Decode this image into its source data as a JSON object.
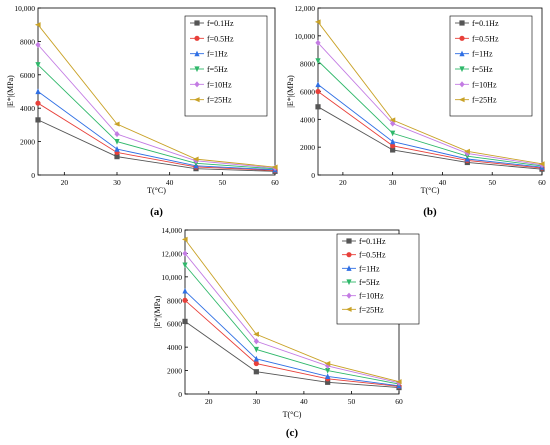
{
  "chart_data": [
    {
      "type": "line",
      "panel_label": "(a)",
      "xlabel": "T(°C)",
      "ylabel": "|E*|(MPa)",
      "x": [
        15,
        30,
        45,
        60
      ],
      "xlim": [
        15,
        60
      ],
      "ylim": [
        0,
        10000
      ],
      "xticks": [
        "20",
        "30",
        "40",
        "50",
        "60"
      ],
      "yticks": [
        "0",
        "2000",
        "4000",
        "6000",
        "8000",
        "10,000"
      ],
      "legend_position": "top-right",
      "series": [
        {
          "name": "f=0.1Hz",
          "color": "#555555",
          "marker": "square",
          "values": [
            3300,
            1100,
            380,
            220
          ]
        },
        {
          "name": "f=0.5Hz",
          "color": "#e8403a",
          "marker": "circle",
          "values": [
            4300,
            1350,
            480,
            270
          ]
        },
        {
          "name": "f=1Hz",
          "color": "#2f6fe4",
          "marker": "triangle-up",
          "values": [
            5000,
            1550,
            550,
            310
          ]
        },
        {
          "name": "f=5Hz",
          "color": "#2fb86a",
          "marker": "triangle-down",
          "values": [
            6600,
            2000,
            700,
            370
          ]
        },
        {
          "name": "f=10Hz",
          "color": "#c37be3",
          "marker": "diamond",
          "values": [
            7800,
            2450,
            850,
            420
          ]
        },
        {
          "name": "f=25Hz",
          "color": "#c9a227",
          "marker": "triangle-left",
          "values": [
            9000,
            3050,
            950,
            470
          ]
        }
      ]
    },
    {
      "type": "line",
      "panel_label": "(b)",
      "xlabel": "T(°C)",
      "ylabel": "|E*|(MPa)",
      "x": [
        15,
        30,
        45,
        60
      ],
      "xlim": [
        15,
        60
      ],
      "ylim": [
        0,
        12000
      ],
      "xticks": [
        "20",
        "30",
        "40",
        "50",
        "60"
      ],
      "yticks": [
        "0",
        "2000",
        "4000",
        "6000",
        "8000",
        "10,000",
        "12,000"
      ],
      "legend_position": "top-right",
      "series": [
        {
          "name": "f=0.1Hz",
          "color": "#555555",
          "marker": "square",
          "values": [
            4900,
            1800,
            900,
            420
          ]
        },
        {
          "name": "f=0.5Hz",
          "color": "#e8403a",
          "marker": "circle",
          "values": [
            6000,
            2100,
            1050,
            500
          ]
        },
        {
          "name": "f=1Hz",
          "color": "#2f6fe4",
          "marker": "triangle-up",
          "values": [
            6500,
            2400,
            1150,
            560
          ]
        },
        {
          "name": "f=5Hz",
          "color": "#2fb86a",
          "marker": "triangle-down",
          "values": [
            8200,
            3000,
            1350,
            650
          ]
        },
        {
          "name": "f=10Hz",
          "color": "#c37be3",
          "marker": "diamond",
          "values": [
            9500,
            3700,
            1550,
            720
          ]
        },
        {
          "name": "f=25Hz",
          "color": "#c9a227",
          "marker": "triangle-left",
          "values": [
            11000,
            3950,
            1700,
            800
          ]
        }
      ]
    },
    {
      "type": "line",
      "panel_label": "(c)",
      "xlabel": "T(°C)",
      "ylabel": "|E*|(MPa)",
      "x": [
        15,
        30,
        45,
        60
      ],
      "xlim": [
        15,
        60
      ],
      "ylim": [
        0,
        14000
      ],
      "xticks": [
        "20",
        "30",
        "40",
        "50",
        "60"
      ],
      "yticks": [
        "0",
        "2000",
        "4000",
        "6000",
        "8000",
        "10,000",
        "12,000",
        "14,000"
      ],
      "legend_position": "top-right",
      "series": [
        {
          "name": "f=0.1Hz",
          "color": "#555555",
          "marker": "square",
          "values": [
            6200,
            1900,
            1000,
            550
          ]
        },
        {
          "name": "f=0.5Hz",
          "color": "#e8403a",
          "marker": "circle",
          "values": [
            8000,
            2600,
            1300,
            650
          ]
        },
        {
          "name": "f=1Hz",
          "color": "#2f6fe4",
          "marker": "triangle-up",
          "values": [
            8800,
            3000,
            1500,
            700
          ]
        },
        {
          "name": "f=5Hz",
          "color": "#2fb86a",
          "marker": "triangle-down",
          "values": [
            11000,
            3800,
            2000,
            850
          ]
        },
        {
          "name": "f=10Hz",
          "color": "#c37be3",
          "marker": "diamond",
          "values": [
            12000,
            4500,
            2400,
            950
          ]
        },
        {
          "name": "f=25Hz",
          "color": "#c9a227",
          "marker": "triangle-left",
          "values": [
            13200,
            5100,
            2600,
            1050
          ]
        }
      ]
    }
  ]
}
